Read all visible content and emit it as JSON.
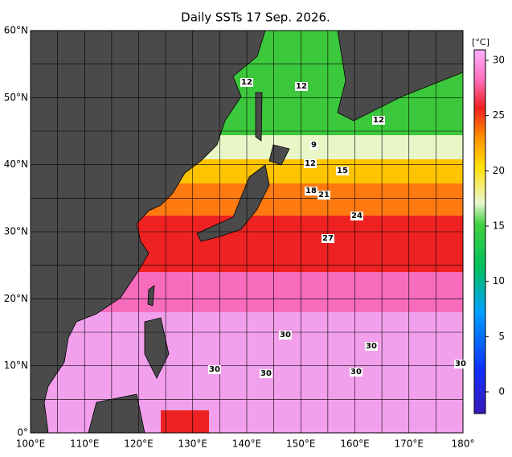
{
  "title": "Daily SSTs 17 Sep. 2026.",
  "lat_labels": [
    "60°N",
    "50°N",
    "40°N",
    "30°N",
    "20°N",
    "10°N",
    "0°"
  ],
  "lon_labels": [
    "100°E",
    "110°E",
    "120°E",
    "130°E",
    "140°E",
    "150°E",
    "160°E",
    "170°E",
    "180°"
  ],
  "colorbar": {
    "unit": "[°C]",
    "ticks": [
      0,
      5,
      10,
      15,
      20,
      25,
      30
    ]
  },
  "contour_labels": [
    "12",
    "12",
    "12",
    "9",
    "12",
    "15",
    "18",
    "21",
    "24",
    "27",
    "30",
    "30",
    "30",
    "30",
    "30",
    "30"
  ]
}
